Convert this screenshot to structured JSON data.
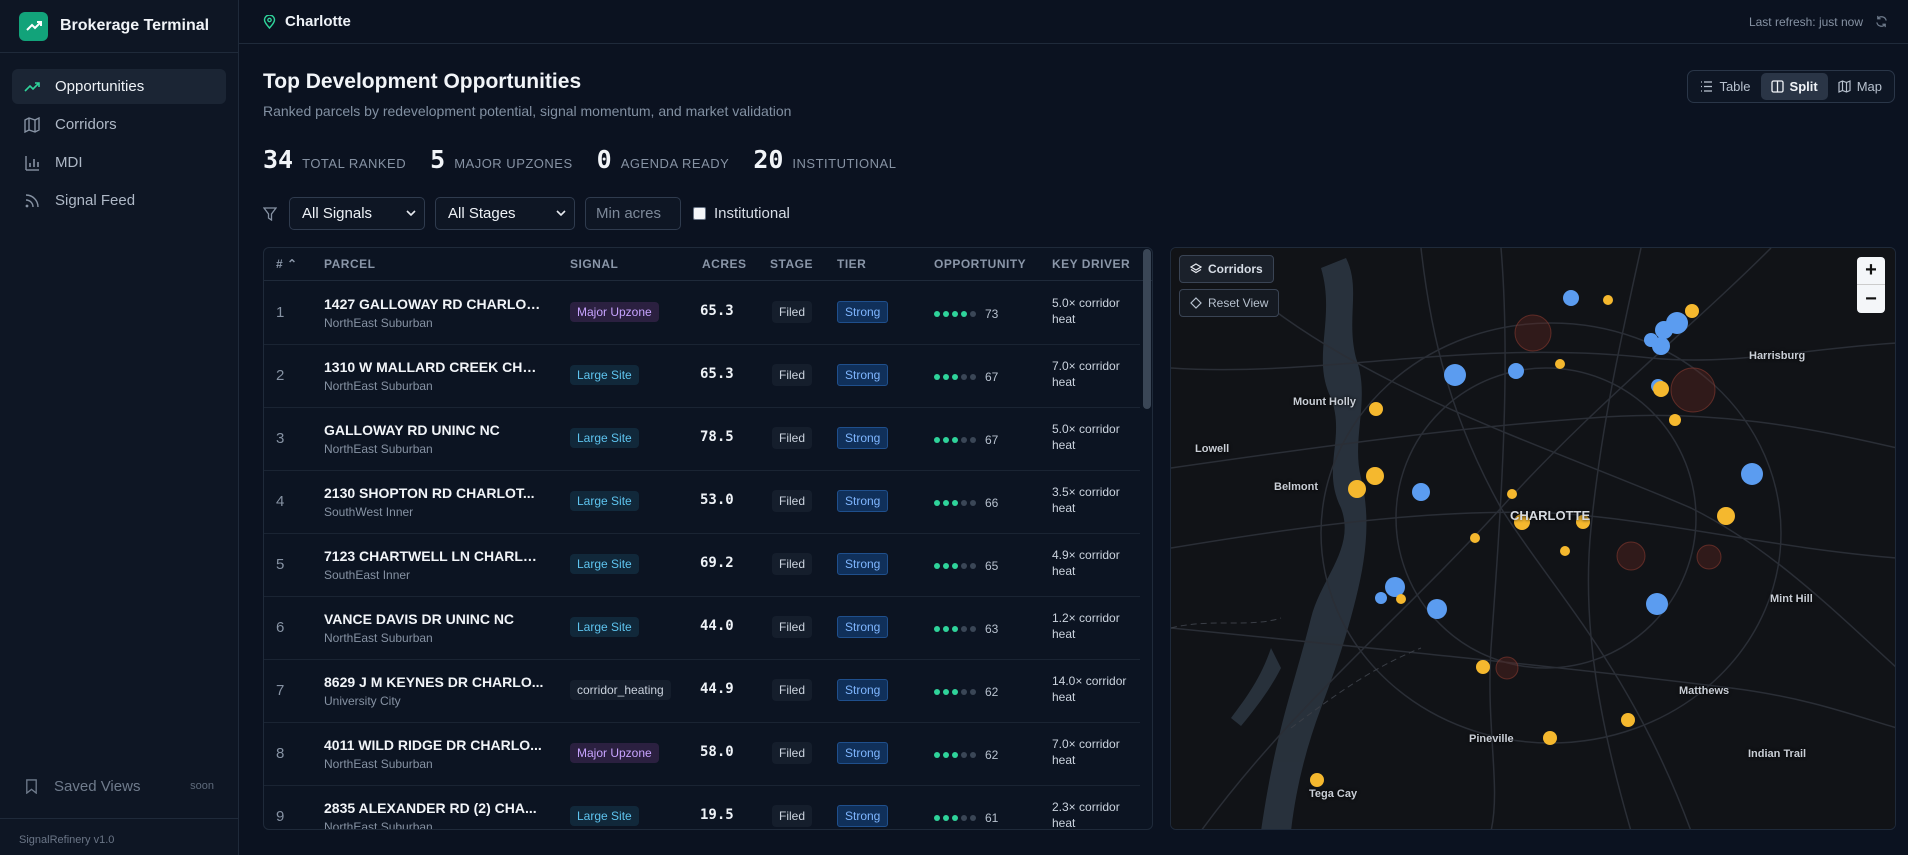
{
  "app": {
    "title": "Brokerage Terminal",
    "version": "SignalRefinery v1.0"
  },
  "sidebar": {
    "items": [
      {
        "label": "Opportunities",
        "icon": "trending-up-icon",
        "active": true
      },
      {
        "label": "Corridors",
        "icon": "map-icon"
      },
      {
        "label": "MDI",
        "icon": "bar-chart-icon"
      },
      {
        "label": "Signal Feed",
        "icon": "rss-icon"
      }
    ],
    "saved_views": {
      "label": "Saved Views",
      "badge": "soon"
    }
  },
  "topbar": {
    "location": "Charlotte",
    "refresh": "Last refresh: just now"
  },
  "page": {
    "title": "Top Development Opportunities",
    "subtitle": "Ranked parcels by redevelopment potential, signal momentum, and market validation"
  },
  "view_toggle": {
    "options": [
      "Table",
      "Split",
      "Map"
    ],
    "selected": "Split"
  },
  "stats": [
    {
      "value": "34",
      "label": "TOTAL RANKED"
    },
    {
      "value": "5",
      "label": "MAJOR UPZONES"
    },
    {
      "value": "0",
      "label": "AGENDA READY"
    },
    {
      "value": "20",
      "label": "INSTITUTIONAL"
    }
  ],
  "filters": {
    "signal": "All Signals",
    "stage": "All Stages",
    "min_acres_placeholder": "Min acres",
    "institutional_label": "Institutional"
  },
  "table": {
    "columns": [
      "#",
      "PARCEL",
      "SIGNAL",
      "ACRES",
      "STAGE",
      "TIER",
      "OPPORTUNITY",
      "KEY DRIVER"
    ],
    "rows": [
      {
        "rank": "1",
        "address": "1427 GALLOWAY RD CHARLOT...",
        "area": "NorthEast Suburban",
        "signal": "Major Upzone",
        "signal_type": "major",
        "acres": "65.3",
        "stage": "Filed",
        "tier": "Strong",
        "dots": 4,
        "score": "73",
        "driver": "5.0× corridor heat"
      },
      {
        "rank": "2",
        "address": "1310 W MALLARD CREEK CHU...",
        "area": "NorthEast Suburban",
        "signal": "Large Site",
        "signal_type": "large",
        "acres": "65.3",
        "stage": "Filed",
        "tier": "Strong",
        "dots": 3,
        "score": "67",
        "driver": "7.0× corridor heat"
      },
      {
        "rank": "3",
        "address": "GALLOWAY RD UNINC NC",
        "area": "NorthEast Suburban",
        "signal": "Large Site",
        "signal_type": "large",
        "acres": "78.5",
        "stage": "Filed",
        "tier": "Strong",
        "dots": 3,
        "score": "67",
        "driver": "5.0× corridor heat"
      },
      {
        "rank": "4",
        "address": "2130 SHOPTON RD CHARLOT...",
        "area": "SouthWest Inner",
        "signal": "Large Site",
        "signal_type": "large",
        "acres": "53.0",
        "stage": "Filed",
        "tier": "Strong",
        "dots": 3,
        "score": "66",
        "driver": "3.5× corridor heat"
      },
      {
        "rank": "5",
        "address": "7123 CHARTWELL LN CHARLO...",
        "area": "SouthEast Inner",
        "signal": "Large Site",
        "signal_type": "large",
        "acres": "69.2",
        "stage": "Filed",
        "tier": "Strong",
        "dots": 3,
        "score": "65",
        "driver": "4.9× corridor heat"
      },
      {
        "rank": "6",
        "address": "VANCE DAVIS DR UNINC NC",
        "area": "NorthEast Suburban",
        "signal": "Large Site",
        "signal_type": "large",
        "acres": "44.0",
        "stage": "Filed",
        "tier": "Strong",
        "dots": 3,
        "score": "63",
        "driver": "1.2× corridor heat"
      },
      {
        "rank": "7",
        "address": "8629 J M KEYNES DR CHARLO...",
        "area": "University City",
        "signal": "corridor_heating",
        "signal_type": "corr",
        "acres": "44.9",
        "stage": "Filed",
        "tier": "Strong",
        "dots": 3,
        "score": "62",
        "driver": "14.0× corridor heat"
      },
      {
        "rank": "8",
        "address": "4011 WILD RIDGE DR CHARLO...",
        "area": "NorthEast Suburban",
        "signal": "Major Upzone",
        "signal_type": "major",
        "acres": "58.0",
        "stage": "Filed",
        "tier": "Strong",
        "dots": 3,
        "score": "62",
        "driver": "7.0× corridor heat"
      },
      {
        "rank": "9",
        "address": "2835 ALEXANDER RD (2) CHA...",
        "area": "NorthEast Suburban",
        "signal": "Large Site",
        "signal_type": "large",
        "acres": "19.5",
        "stage": "Filed",
        "tier": "Strong",
        "dots": 3,
        "score": "61",
        "driver": "2.3× corridor heat"
      }
    ]
  },
  "map": {
    "corridors_label": "Corridors",
    "reset_label": "Reset View",
    "zoom_in": "+",
    "zoom_out": "−",
    "place_labels": [
      "Harrisburg",
      "Mount Holly",
      "Lowell",
      "Belmont",
      "CHARLOTTE",
      "Mint Hill",
      "Matthews",
      "Indian Trail",
      "Pineville",
      "Tega Cay"
    ],
    "colors": {
      "blue": "#5b9cf0",
      "yellow": "#f5b82e",
      "heat": "#7a2a22"
    }
  }
}
